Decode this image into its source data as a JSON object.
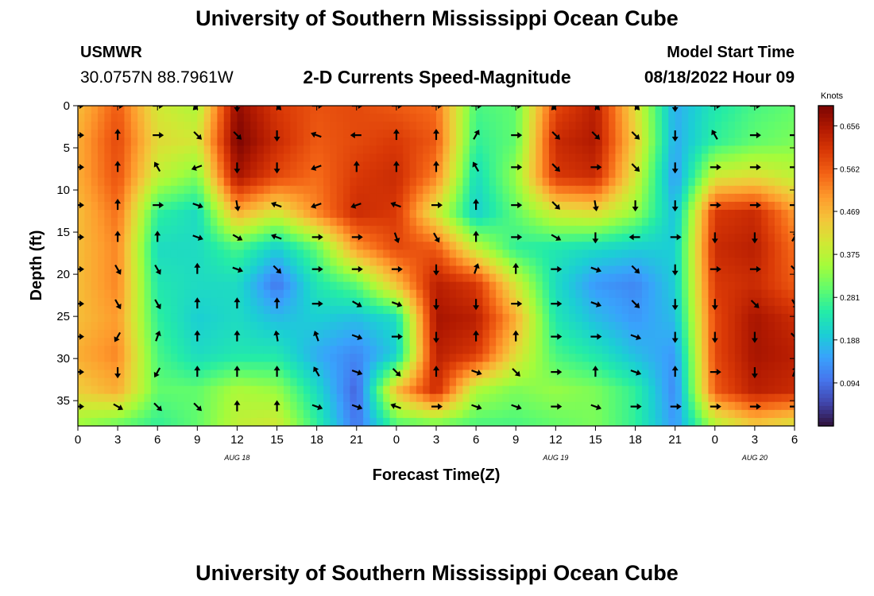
{
  "header": {
    "title": "University of Southern Mississippi Ocean Cube",
    "station_id": "USMWR",
    "station_coords": "30.0757N  88.7961W",
    "plot_title": "2-D Currents Speed-Magnitude",
    "model_label": "Model Start Time",
    "model_time": "08/18/2022 Hour 09"
  },
  "footer": {
    "title": "University of Southern Mississippi Ocean Cube"
  },
  "chart_data": {
    "type": "heatmap",
    "title": "2-D Currents Speed-Magnitude",
    "xlabel": "Forecast Time(Z)",
    "ylabel": "Depth (ft)",
    "x_hours": [
      0,
      3,
      6,
      9,
      12,
      15,
      18,
      21,
      24,
      27,
      30,
      33,
      36,
      39,
      42,
      45,
      48,
      51,
      54
    ],
    "x_tick_labels": [
      "0",
      "3",
      "6",
      "9",
      "12",
      "15",
      "18",
      "21",
      "0",
      "3",
      "6",
      "9",
      "12",
      "15",
      "18",
      "21",
      "0",
      "3",
      "6"
    ],
    "date_labels": [
      {
        "text": "AUG 18",
        "hour": 12
      },
      {
        "text": "AUG 19",
        "hour": 36
      },
      {
        "text": "AUG 20",
        "hour": 51
      }
    ],
    "xlim": [
      0,
      54
    ],
    "ylim": [
      0,
      38
    ],
    "y_ticks": [
      0,
      5,
      10,
      15,
      20,
      25,
      30,
      35
    ],
    "colorbar": {
      "label": "Knots",
      "min": 0.0,
      "max": 0.7,
      "ticks": [
        "0.656",
        "0.562",
        "0.469",
        "0.375",
        "0.281",
        "0.188",
        "0.094"
      ],
      "tick_values": [
        0.656,
        0.562,
        0.469,
        0.375,
        0.281,
        0.188,
        0.094
      ],
      "colormap": [
        "#30123b",
        "#4145ab",
        "#4675ed",
        "#39a2fc",
        "#1bcfd4",
        "#24eca6",
        "#61fc6c",
        "#a4fc3b",
        "#d1e834",
        "#f3c63a",
        "#fe9b2d",
        "#f36315",
        "#d93806",
        "#b11901",
        "#7a0402"
      ]
    },
    "speed_knots": [
      [
        0.46,
        0.56,
        0.4,
        0.36,
        0.68,
        0.6,
        0.57,
        0.58,
        0.56,
        0.54,
        0.28,
        0.3,
        0.58,
        0.64,
        0.42,
        0.16,
        0.24,
        0.28,
        0.3
      ],
      [
        0.48,
        0.58,
        0.42,
        0.4,
        0.7,
        0.62,
        0.56,
        0.58,
        0.6,
        0.56,
        0.26,
        0.3,
        0.62,
        0.65,
        0.44,
        0.16,
        0.26,
        0.3,
        0.32
      ],
      [
        0.48,
        0.57,
        0.38,
        0.32,
        0.66,
        0.58,
        0.54,
        0.6,
        0.62,
        0.52,
        0.22,
        0.34,
        0.6,
        0.62,
        0.4,
        0.14,
        0.4,
        0.42,
        0.38
      ],
      [
        0.46,
        0.54,
        0.26,
        0.22,
        0.48,
        0.4,
        0.52,
        0.62,
        0.6,
        0.4,
        0.2,
        0.3,
        0.4,
        0.42,
        0.34,
        0.18,
        0.6,
        0.62,
        0.5
      ],
      [
        0.46,
        0.52,
        0.22,
        0.22,
        0.28,
        0.2,
        0.3,
        0.5,
        0.58,
        0.56,
        0.38,
        0.26,
        0.24,
        0.22,
        0.2,
        0.2,
        0.62,
        0.64,
        0.54
      ],
      [
        0.46,
        0.52,
        0.24,
        0.22,
        0.22,
        0.1,
        0.24,
        0.3,
        0.46,
        0.64,
        0.6,
        0.4,
        0.22,
        0.14,
        0.12,
        0.2,
        0.6,
        0.62,
        0.56
      ],
      [
        0.46,
        0.5,
        0.26,
        0.2,
        0.22,
        0.18,
        0.2,
        0.18,
        0.22,
        0.66,
        0.64,
        0.48,
        0.24,
        0.18,
        0.14,
        0.18,
        0.58,
        0.66,
        0.62
      ],
      [
        0.48,
        0.52,
        0.28,
        0.22,
        0.24,
        0.24,
        0.16,
        0.12,
        0.2,
        0.64,
        0.6,
        0.42,
        0.28,
        0.24,
        0.18,
        0.14,
        0.58,
        0.66,
        0.64
      ],
      [
        0.44,
        0.48,
        0.3,
        0.3,
        0.36,
        0.34,
        0.22,
        0.08,
        0.46,
        0.62,
        0.36,
        0.32,
        0.34,
        0.32,
        0.26,
        0.12,
        0.56,
        0.64,
        0.62
      ],
      [
        0.34,
        0.3,
        0.26,
        0.3,
        0.38,
        0.4,
        0.26,
        0.1,
        0.28,
        0.3,
        0.28,
        0.28,
        0.3,
        0.32,
        0.26,
        0.14,
        0.36,
        0.44,
        0.4
      ]
    ],
    "arrow_angles_deg": [
      [
        0,
        0,
        0,
        135,
        90,
        45,
        0,
        0,
        0,
        0,
        0,
        0,
        135,
        45,
        45,
        90,
        0,
        0,
        0
      ],
      [
        0,
        -90,
        0,
        45,
        45,
        90,
        200,
        180,
        -90,
        -90,
        -60,
        0,
        45,
        45,
        45,
        90,
        -120,
        0,
        0
      ],
      [
        0,
        -90,
        -120,
        160,
        90,
        90,
        160,
        -90,
        -90,
        -90,
        -120,
        0,
        45,
        0,
        45,
        90,
        0,
        0,
        0
      ],
      [
        0,
        -90,
        0,
        20,
        80,
        200,
        160,
        160,
        200,
        0,
        -90,
        0,
        45,
        80,
        90,
        90,
        0,
        0,
        0
      ],
      [
        0,
        -90,
        -90,
        20,
        30,
        200,
        0,
        0,
        70,
        60,
        -90,
        0,
        30,
        90,
        180,
        0,
        90,
        90,
        -60
      ],
      [
        0,
        60,
        60,
        -90,
        20,
        45,
        0,
        0,
        0,
        90,
        -70,
        -90,
        0,
        20,
        45,
        90,
        0,
        0,
        45
      ],
      [
        0,
        60,
        60,
        -90,
        -90,
        -90,
        0,
        30,
        20,
        90,
        90,
        0,
        0,
        20,
        45,
        90,
        90,
        45,
        60
      ],
      [
        0,
        120,
        -70,
        -90,
        -90,
        -100,
        -110,
        20,
        0,
        90,
        -90,
        -90,
        0,
        0,
        20,
        90,
        90,
        90,
        45
      ],
      [
        0,
        90,
        120,
        -90,
        -90,
        -90,
        -120,
        20,
        45,
        -90,
        20,
        45,
        0,
        -90,
        20,
        -90,
        0,
        90,
        -70
      ],
      [
        0,
        30,
        45,
        45,
        -90,
        -90,
        20,
        20,
        200,
        0,
        20,
        20,
        0,
        20,
        0,
        0,
        0,
        0,
        0
      ]
    ],
    "arrow_depths_ft": [
      0,
      3.5,
      7.3,
      11.8,
      15.6,
      19.4,
      23.5,
      27.4,
      31.6,
      35.7
    ],
    "arrow_hours": [
      0,
      3,
      6,
      9,
      12,
      15,
      18,
      21,
      24,
      27,
      30,
      33,
      36,
      39,
      42,
      45,
      48,
      51,
      54
    ]
  }
}
